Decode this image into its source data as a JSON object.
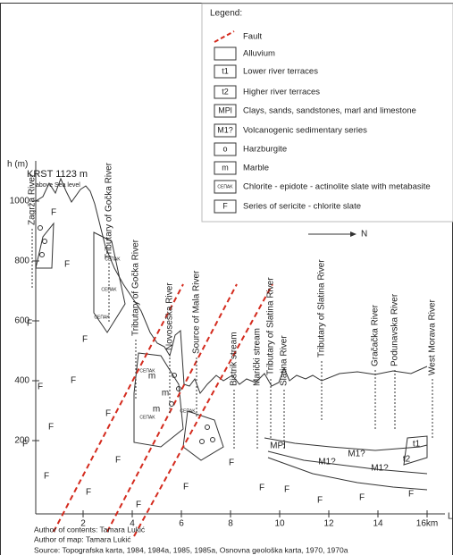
{
  "legend": {
    "title": "Legend:",
    "items": [
      {
        "symbol": "",
        "label": "Fault"
      },
      {
        "symbol": "",
        "label": "Alluvium"
      },
      {
        "symbol": "t1",
        "label": "Lower river terraces"
      },
      {
        "symbol": "t2",
        "label": "Higher river terraces"
      },
      {
        "symbol": "MPl",
        "label": "Clays, sands, sandstones, marl and limestone"
      },
      {
        "symbol": "M1?",
        "label": "Volcanogenic sedimentary series"
      },
      {
        "symbol": "o",
        "label": "Harzburgite"
      },
      {
        "symbol": "m",
        "label": "Marble"
      },
      {
        "symbol": "CEПAK",
        "label": "Chlorite - epidote - actinolite slate with metabasite"
      },
      {
        "symbol": "F",
        "label": "Series of sericite - chlorite slate"
      }
    ]
  },
  "axis": {
    "y_label": "h (m)",
    "y_ticks": [
      200,
      400,
      600,
      800,
      1000
    ],
    "x_ticks": [
      2,
      4,
      6,
      8,
      10,
      12,
      14,
      {
        "value": 16,
        "label": "16km"
      }
    ],
    "x_end": "L"
  },
  "peak": {
    "name": "KRST 1123 m",
    "note": "above Sea level"
  },
  "north": "N",
  "rivers": [
    "Zagrža River",
    "Tributary of Gočka River",
    "Tributary of Gočka River",
    "Novoseška River",
    "Source of Mala River",
    "Bistrik stream",
    "Marički stream",
    "Tributary of Slatina River",
    "Slatina River",
    "Tributary of Slatina River",
    "Gračačka River",
    "Podunavska River",
    "West Morava River"
  ],
  "rock_labels": [
    "F",
    "F",
    "F",
    "F",
    "F",
    "F",
    "F",
    "F",
    "F",
    "F",
    "F",
    "F",
    "F",
    "F",
    "F",
    "F",
    "F",
    "F",
    "F",
    "F",
    "M1?",
    "M1?",
    "M1?",
    "MPI",
    "t1",
    "t2",
    "CEПAK",
    "CEПAK",
    "CEПAK",
    "CEПAK",
    "CEПAK",
    "CEПAK",
    "m",
    "m",
    "m"
  ],
  "credits": [
    "Author of contents: Tamara Lukić",
    "Author of map: Tamara Lukić",
    "Source: Topografska karta, 1984, 1984a, 1985, 1985a, Osnovna geološka karta, 1970, 1970a"
  ]
}
